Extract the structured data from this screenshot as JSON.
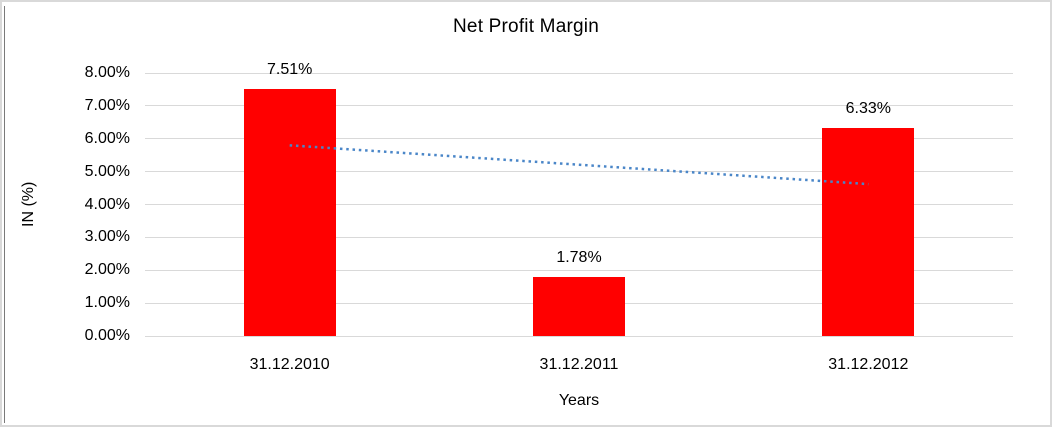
{
  "window": {
    "background": "#ffffff",
    "frame_color": "#d9d9d9",
    "frame_left_accent": "#7a7a7a"
  },
  "chart_data": {
    "type": "bar",
    "title": "Net Profit Margin",
    "categories": [
      "31.12.2010",
      "31.12.2011",
      "31.12.2012"
    ],
    "values": [
      7.51,
      1.78,
      6.33
    ],
    "value_labels": [
      "7.51%",
      "1.78%",
      "6.33%"
    ],
    "xlabel": "Years",
    "ylabel": "IN (%)",
    "ylim": [
      0,
      8
    ],
    "yticks": [
      0,
      1,
      2,
      3,
      4,
      5,
      6,
      7,
      8
    ],
    "ytick_labels": [
      "0.00%",
      "1.00%",
      "2.00%",
      "3.00%",
      "4.00%",
      "5.00%",
      "6.00%",
      "7.00%",
      "8.00%"
    ],
    "grid": true,
    "legend": "none",
    "bar_color": "#ff0000",
    "gridline_color": "#d9d9d9",
    "text_color": "#000000",
    "trendline": {
      "type": "linear",
      "style": "dotted",
      "color": "#4a86c8",
      "points": [
        {
          "category_index": 0,
          "value": 5.8
        },
        {
          "category_index": 2,
          "value": 4.62
        }
      ]
    }
  }
}
